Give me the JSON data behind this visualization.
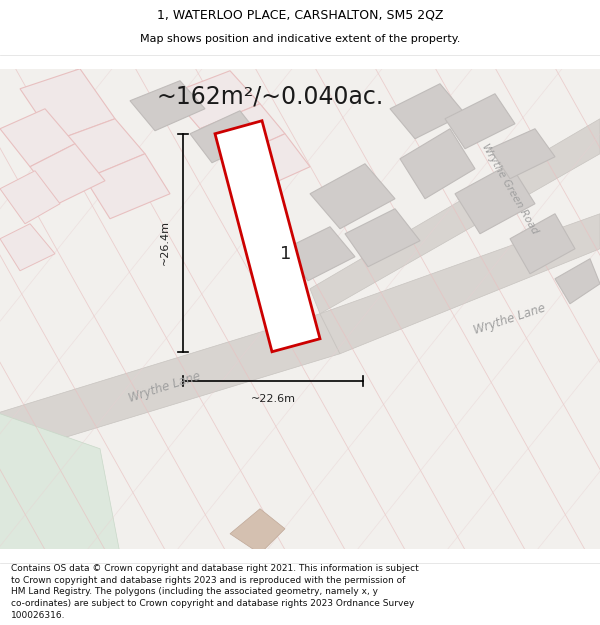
{
  "title_line1": "1, WATERLOO PLACE, CARSHALTON, SM5 2QZ",
  "title_line2": "Map shows position and indicative extent of the property.",
  "area_text": "~162m²/~0.040ac.",
  "dim_width": "~22.6m",
  "dim_height": "~26.4m",
  "plot_number": "1",
  "road_label1": "Wrythe Lane",
  "road_label2": "Wrythe Green Road",
  "road_label3": "Wrythe Lane",
  "footer_lines": [
    "Contains OS data © Crown copyright and database right 2021. This information is subject",
    "to Crown copyright and database rights 2023 and is reproduced with the permission of",
    "HM Land Registry. The polygons (including the associated geometry, namely x, y",
    "co-ordinates) are subject to Crown copyright and database rights 2023 Ordnance Survey",
    "100026316."
  ],
  "map_bg": "#f2f0ed",
  "road_pink": "#e8c0c0",
  "road_gray": "#d8d4d0",
  "building_gray_fill": "#d0ccca",
  "building_gray_ec": "#c0bcba",
  "building_pink_fill": "#f0e8e8",
  "building_pink_ec": "#e0c0c0",
  "plot_fill": "#ffffff",
  "plot_edge": "#cc0000",
  "green_fill": "#dde8dd",
  "tan_fill": "#d4c0b0",
  "white": "#ffffff",
  "black": "#000000",
  "road_label_color": "#a0a0a0",
  "dim_color": "#222222",
  "title_fontsize": 9,
  "subtitle_fontsize": 8,
  "area_fontsize": 17,
  "footer_fontsize": 6.5,
  "plot_label_fontsize": 13
}
